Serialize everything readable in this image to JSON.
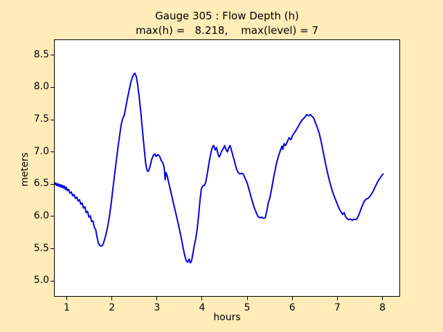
{
  "figure": {
    "background_color": "#FFECB9",
    "plot_background_color": "#FFFFFF",
    "axis_color": "#000000"
  },
  "chart_data": {
    "type": "line",
    "title": "Gauge 305 : Flow Depth (h)",
    "subtitle": "max(h) =   8.218,    max(level) = 7",
    "max_h": 8.218,
    "max_level": 7,
    "xlabel": "hours",
    "ylabel": "meters",
    "xlim": [
      0.731,
      8.375
    ],
    "ylim": [
      4.766,
      8.734
    ],
    "x_ticks": [
      1,
      2,
      3,
      4,
      5,
      6,
      7,
      8
    ],
    "x_tick_labels": [
      "1",
      "2",
      "3",
      "4",
      "5",
      "6",
      "7",
      "8"
    ],
    "y_ticks": [
      5.0,
      5.5,
      6.0,
      6.5,
      7.0,
      7.5,
      8.0,
      8.5
    ],
    "y_tick_labels": [
      "5.0",
      "5.5",
      "6.0",
      "6.5",
      "7.0",
      "7.5",
      "8.0",
      "8.5"
    ],
    "grid": false,
    "legend": false,
    "line_color": "#0000DD",
    "line_width": 2,
    "series": [
      {
        "name": "h (flow depth)",
        "points": [
          [
            0.731,
            6.5
          ],
          [
            0.75,
            6.52
          ],
          [
            0.77,
            6.48
          ],
          [
            0.79,
            6.51
          ],
          [
            0.81,
            6.47
          ],
          [
            0.83,
            6.5
          ],
          [
            0.85,
            6.46
          ],
          [
            0.87,
            6.49
          ],
          [
            0.89,
            6.45
          ],
          [
            0.91,
            6.48
          ],
          [
            0.93,
            6.44
          ],
          [
            0.95,
            6.47
          ],
          [
            0.97,
            6.42
          ],
          [
            0.99,
            6.45
          ],
          [
            1.01,
            6.4
          ],
          [
            1.04,
            6.42
          ],
          [
            1.07,
            6.36
          ],
          [
            1.1,
            6.38
          ],
          [
            1.13,
            6.32
          ],
          [
            1.16,
            6.34
          ],
          [
            1.19,
            6.28
          ],
          [
            1.22,
            6.3
          ],
          [
            1.25,
            6.24
          ],
          [
            1.28,
            6.26
          ],
          [
            1.31,
            6.19
          ],
          [
            1.34,
            6.21
          ],
          [
            1.37,
            6.13
          ],
          [
            1.4,
            6.15
          ],
          [
            1.43,
            6.06
          ],
          [
            1.46,
            6.08
          ],
          [
            1.49,
            5.99
          ],
          [
            1.52,
            6.01
          ],
          [
            1.55,
            5.92
          ],
          [
            1.58,
            5.93
          ],
          [
            1.61,
            5.83
          ],
          [
            1.64,
            5.8
          ],
          [
            1.67,
            5.68
          ],
          [
            1.7,
            5.59
          ],
          [
            1.73,
            5.55
          ],
          [
            1.76,
            5.54
          ],
          [
            1.79,
            5.55
          ],
          [
            1.82,
            5.6
          ],
          [
            1.86,
            5.7
          ],
          [
            1.9,
            5.82
          ],
          [
            1.94,
            5.98
          ],
          [
            1.98,
            6.18
          ],
          [
            2.02,
            6.42
          ],
          [
            2.06,
            6.65
          ],
          [
            2.1,
            6.88
          ],
          [
            2.14,
            7.1
          ],
          [
            2.18,
            7.3
          ],
          [
            2.21,
            7.44
          ],
          [
            2.24,
            7.52
          ],
          [
            2.27,
            7.56
          ],
          [
            2.3,
            7.66
          ],
          [
            2.33,
            7.78
          ],
          [
            2.36,
            7.88
          ],
          [
            2.39,
            7.98
          ],
          [
            2.42,
            8.08
          ],
          [
            2.45,
            8.15
          ],
          [
            2.48,
            8.2
          ],
          [
            2.51,
            8.22
          ],
          [
            2.54,
            8.17
          ],
          [
            2.57,
            8.05
          ],
          [
            2.6,
            7.88
          ],
          [
            2.64,
            7.62
          ],
          [
            2.68,
            7.32
          ],
          [
            2.72,
            7.02
          ],
          [
            2.75,
            6.82
          ],
          [
            2.78,
            6.71
          ],
          [
            2.81,
            6.7
          ],
          [
            2.84,
            6.76
          ],
          [
            2.88,
            6.88
          ],
          [
            2.92,
            6.95
          ],
          [
            2.95,
            6.97
          ],
          [
            2.98,
            6.93
          ],
          [
            3.02,
            6.96
          ],
          [
            3.06,
            6.93
          ],
          [
            3.1,
            6.86
          ],
          [
            3.13,
            6.83
          ],
          [
            3.16,
            6.76
          ],
          [
            3.18,
            6.57
          ],
          [
            3.2,
            6.68
          ],
          [
            3.23,
            6.62
          ],
          [
            3.26,
            6.52
          ],
          [
            3.3,
            6.4
          ],
          [
            3.34,
            6.28
          ],
          [
            3.38,
            6.16
          ],
          [
            3.42,
            6.04
          ],
          [
            3.46,
            5.92
          ],
          [
            3.5,
            5.79
          ],
          [
            3.54,
            5.66
          ],
          [
            3.58,
            5.51
          ],
          [
            3.62,
            5.38
          ],
          [
            3.65,
            5.31
          ],
          [
            3.68,
            5.29
          ],
          [
            3.71,
            5.34
          ],
          [
            3.74,
            5.28
          ],
          [
            3.77,
            5.32
          ],
          [
            3.8,
            5.44
          ],
          [
            3.83,
            5.56
          ],
          [
            3.86,
            5.66
          ],
          [
            3.89,
            5.8
          ],
          [
            3.92,
            6.0
          ],
          [
            3.95,
            6.22
          ],
          [
            3.98,
            6.42
          ],
          [
            4.01,
            6.47
          ],
          [
            4.05,
            6.48
          ],
          [
            4.08,
            6.53
          ],
          [
            4.12,
            6.68
          ],
          [
            4.16,
            6.86
          ],
          [
            4.2,
            7.0
          ],
          [
            4.23,
            7.08
          ],
          [
            4.26,
            7.1
          ],
          [
            4.29,
            7.03
          ],
          [
            4.32,
            7.07
          ],
          [
            4.35,
            6.97
          ],
          [
            4.38,
            6.92
          ],
          [
            4.41,
            6.97
          ],
          [
            4.44,
            7.02
          ],
          [
            4.47,
            7.05
          ],
          [
            4.5,
            7.1
          ],
          [
            4.53,
            7.04
          ],
          [
            4.56,
            7.0
          ],
          [
            4.59,
            7.06
          ],
          [
            4.62,
            7.1
          ],
          [
            4.65,
            7.03
          ],
          [
            4.68,
            6.95
          ],
          [
            4.72,
            6.85
          ],
          [
            4.76,
            6.74
          ],
          [
            4.8,
            6.68
          ],
          [
            4.84,
            6.66
          ],
          [
            4.88,
            6.67
          ],
          [
            4.92,
            6.65
          ],
          [
            4.96,
            6.58
          ],
          [
            5.0,
            6.52
          ],
          [
            5.04,
            6.42
          ],
          [
            5.08,
            6.32
          ],
          [
            5.12,
            6.22
          ],
          [
            5.16,
            6.13
          ],
          [
            5.2,
            6.06
          ],
          [
            5.24,
            6.0
          ],
          [
            5.28,
            5.98
          ],
          [
            5.32,
            5.99
          ],
          [
            5.36,
            5.97
          ],
          [
            5.4,
            5.98
          ],
          [
            5.44,
            6.1
          ],
          [
            5.47,
            6.22
          ],
          [
            5.5,
            6.28
          ],
          [
            5.54,
            6.42
          ],
          [
            5.58,
            6.58
          ],
          [
            5.62,
            6.72
          ],
          [
            5.66,
            6.85
          ],
          [
            5.7,
            6.95
          ],
          [
            5.74,
            7.03
          ],
          [
            5.77,
            7.09
          ],
          [
            5.79,
            7.04
          ],
          [
            5.82,
            7.13
          ],
          [
            5.85,
            7.1
          ],
          [
            5.89,
            7.16
          ],
          [
            5.93,
            7.22
          ],
          [
            5.97,
            7.19
          ],
          [
            6.01,
            7.26
          ],
          [
            6.06,
            7.31
          ],
          [
            6.11,
            7.37
          ],
          [
            6.16,
            7.43
          ],
          [
            6.2,
            7.48
          ],
          [
            6.24,
            7.51
          ],
          [
            6.28,
            7.54
          ],
          [
            6.32,
            7.58
          ],
          [
            6.36,
            7.56
          ],
          [
            6.4,
            7.58
          ],
          [
            6.44,
            7.55
          ],
          [
            6.48,
            7.52
          ],
          [
            6.52,
            7.44
          ],
          [
            6.56,
            7.37
          ],
          [
            6.6,
            7.28
          ],
          [
            6.64,
            7.16
          ],
          [
            6.68,
            7.02
          ],
          [
            6.72,
            6.88
          ],
          [
            6.76,
            6.74
          ],
          [
            6.8,
            6.62
          ],
          [
            6.84,
            6.51
          ],
          [
            6.88,
            6.41
          ],
          [
            6.92,
            6.33
          ],
          [
            6.96,
            6.26
          ],
          [
            7.0,
            6.19
          ],
          [
            7.04,
            6.12
          ],
          [
            7.08,
            6.07
          ],
          [
            7.12,
            6.03
          ],
          [
            7.15,
            6.06
          ],
          [
            7.18,
            6.0
          ],
          [
            7.21,
            5.97
          ],
          [
            7.25,
            5.95
          ],
          [
            7.29,
            5.96
          ],
          [
            7.33,
            5.94
          ],
          [
            7.37,
            5.96
          ],
          [
            7.41,
            5.95
          ],
          [
            7.44,
            5.97
          ],
          [
            7.48,
            6.03
          ],
          [
            7.52,
            6.11
          ],
          [
            7.56,
            6.18
          ],
          [
            7.6,
            6.24
          ],
          [
            7.64,
            6.27
          ],
          [
            7.68,
            6.28
          ],
          [
            7.72,
            6.31
          ],
          [
            7.76,
            6.35
          ],
          [
            7.8,
            6.4
          ],
          [
            7.84,
            6.46
          ],
          [
            7.88,
            6.52
          ],
          [
            7.92,
            6.57
          ],
          [
            7.96,
            6.61
          ],
          [
            8.0,
            6.65
          ],
          [
            8.01,
            6.66
          ]
        ]
      }
    ]
  }
}
